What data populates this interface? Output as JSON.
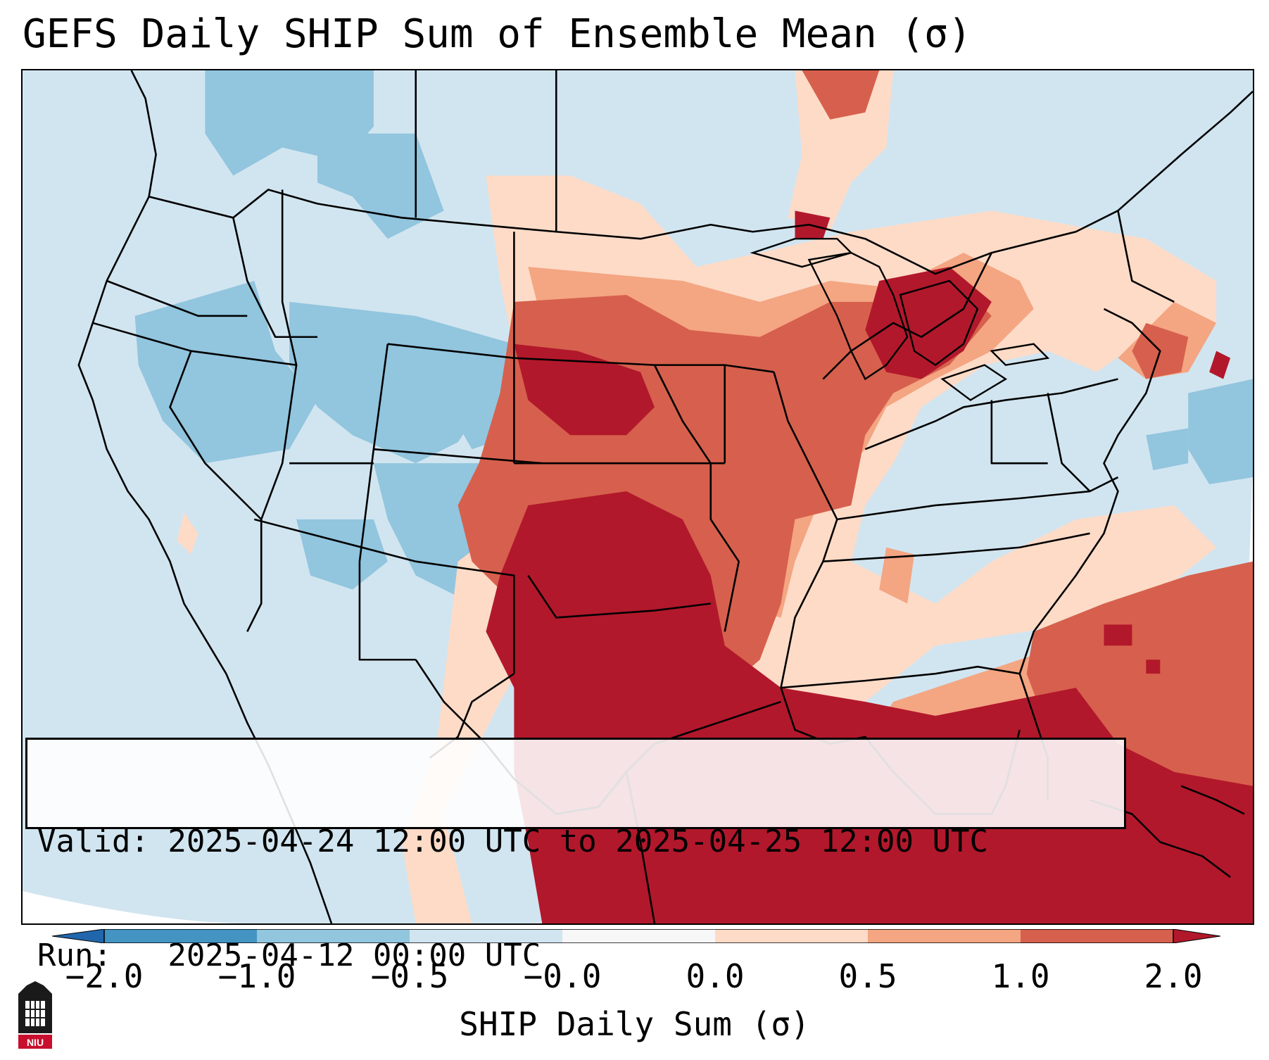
{
  "title": "GEFS Daily SHIP Sum of Ensemble Mean (σ)",
  "info": {
    "valid_line": "Valid: 2025-04-24 12:00 UTC to 2025-04-25 12:00 UTC",
    "run_line": "Run:   2025-04-12 00:00 UTC"
  },
  "colorbar": {
    "label": "SHIP Daily Sum (σ)",
    "ticks": [
      "−2.0",
      "−1.0",
      "−0.5",
      "−0.0",
      "0.0",
      "0.5",
      "1.0",
      "2.0"
    ],
    "extend": "both",
    "colors": {
      "below_min": "#2166ac",
      "-2.0_-1.0": "#4393c3",
      "-1.0_-0.5": "#92c5de",
      "-0.5_0.0": "#d1e5f0",
      "0.0_0.0": "#f7f7f7",
      "0.0_0.5": "#fddbc7",
      "0.5_1.0": "#f4a582",
      "1.0_2.0": "#d6604d",
      "above_max": "#b2182b"
    }
  },
  "map": {
    "region": "Contiguous United States, northern Mexico, Gulf of Mexico, Caribbean",
    "background_colors": {
      "neutral_low": "#d1e5f0",
      "negative_moderate": "#92c5de",
      "positive_low": "#fddbc7",
      "positive_moderate": "#f4a582",
      "positive_high": "#d6604d",
      "positive_extreme": "#b2182b"
    }
  },
  "logo": {
    "text": "NIU",
    "icon": "university-seal-icon"
  }
}
